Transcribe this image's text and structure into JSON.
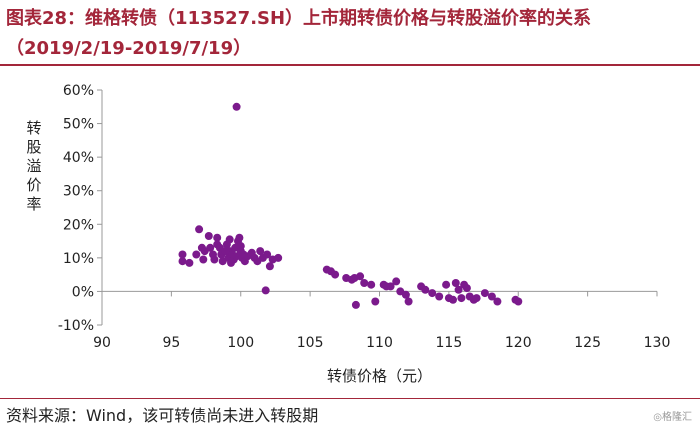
{
  "header": {
    "title_line1": "图表28：维格转债（113527.SH）上市期转债价格与转股溢价率的关系",
    "title_line2": "（2019/2/19-2019/7/19）"
  },
  "footer": {
    "source": "资料来源：Wind，该可转债尚未进入转股期",
    "watermark": "◎格隆汇"
  },
  "colors": {
    "title": "#a3263a",
    "points": "#7b1a8c",
    "axis": "#999999"
  },
  "chart_data": {
    "type": "scatter",
    "xlabel": "转债价格（元）",
    "ylabel": "转股溢价率",
    "xlim": [
      90,
      130
    ],
    "ylim": [
      -10,
      60
    ],
    "x_ticks": [
      90,
      95,
      100,
      105,
      110,
      115,
      120,
      125,
      130
    ],
    "y_ticks": [
      -10,
      0,
      10,
      20,
      30,
      40,
      50,
      60
    ],
    "x_tick_labels": [
      "90",
      "95",
      "100",
      "105",
      "110",
      "115",
      "120",
      "125",
      "130"
    ],
    "y_tick_labels": [
      "-10%",
      "0%",
      "10%",
      "20%",
      "30%",
      "40%",
      "50%",
      "60%"
    ],
    "grid": false,
    "legend": "none",
    "series": [
      {
        "points": [
          [
            99.7,
            55
          ],
          [
            101.8,
            0.3
          ],
          [
            95.8,
            11
          ],
          [
            95.8,
            9
          ],
          [
            96.3,
            8.5
          ],
          [
            96.8,
            11
          ],
          [
            97.0,
            18.5
          ],
          [
            97.2,
            13
          ],
          [
            97.3,
            9.5
          ],
          [
            97.4,
            12
          ],
          [
            97.7,
            16.5
          ],
          [
            97.8,
            13
          ],
          [
            98.0,
            11
          ],
          [
            98.1,
            9.5
          ],
          [
            98.3,
            14
          ],
          [
            98.3,
            16
          ],
          [
            98.5,
            13
          ],
          [
            98.6,
            11
          ],
          [
            98.7,
            9
          ],
          [
            98.9,
            12
          ],
          [
            99.0,
            14
          ],
          [
            99.1,
            10
          ],
          [
            99.2,
            15.5
          ],
          [
            99.2,
            12
          ],
          [
            99.3,
            8.5
          ],
          [
            99.4,
            11
          ],
          [
            99.5,
            9.5
          ],
          [
            99.6,
            13
          ],
          [
            99.7,
            10.5
          ],
          [
            99.8,
            15
          ],
          [
            99.9,
            16
          ],
          [
            100.0,
            12
          ],
          [
            100.0,
            13.5
          ],
          [
            100.1,
            10
          ],
          [
            100.2,
            11
          ],
          [
            100.3,
            9
          ],
          [
            100.5,
            10.5
          ],
          [
            100.8,
            11.5
          ],
          [
            101.0,
            10
          ],
          [
            101.2,
            9
          ],
          [
            101.4,
            12
          ],
          [
            101.6,
            10
          ],
          [
            101.9,
            11
          ],
          [
            102.1,
            7.5
          ],
          [
            102.3,
            9.5
          ],
          [
            102.7,
            10
          ],
          [
            106.2,
            6.5
          ],
          [
            106.5,
            6
          ],
          [
            106.8,
            5
          ],
          [
            107.6,
            4
          ],
          [
            108.0,
            3.5
          ],
          [
            108.2,
            4
          ],
          [
            108.3,
            -4
          ],
          [
            108.6,
            4.5
          ],
          [
            108.9,
            2.5
          ],
          [
            109.4,
            2
          ],
          [
            109.7,
            -3
          ],
          [
            110.3,
            2
          ],
          [
            110.5,
            1.5
          ],
          [
            110.8,
            1.5
          ],
          [
            111.2,
            3
          ],
          [
            111.5,
            0
          ],
          [
            111.9,
            -1
          ],
          [
            112.1,
            -3
          ],
          [
            113.0,
            1.5
          ],
          [
            113.3,
            0.5
          ],
          [
            113.8,
            -0.5
          ],
          [
            114.3,
            -1.5
          ],
          [
            114.8,
            2
          ],
          [
            115.0,
            -2
          ],
          [
            115.3,
            -2.5
          ],
          [
            115.5,
            2.5
          ],
          [
            115.7,
            0.5
          ],
          [
            115.9,
            -2
          ],
          [
            116.1,
            2
          ],
          [
            116.3,
            1
          ],
          [
            116.5,
            -1.5
          ],
          [
            116.8,
            -2.5
          ],
          [
            117.0,
            -2
          ],
          [
            117.6,
            -0.5
          ],
          [
            118.1,
            -1.5
          ],
          [
            118.5,
            -3
          ],
          [
            119.8,
            -2.5
          ],
          [
            120.0,
            -3
          ]
        ]
      }
    ]
  }
}
